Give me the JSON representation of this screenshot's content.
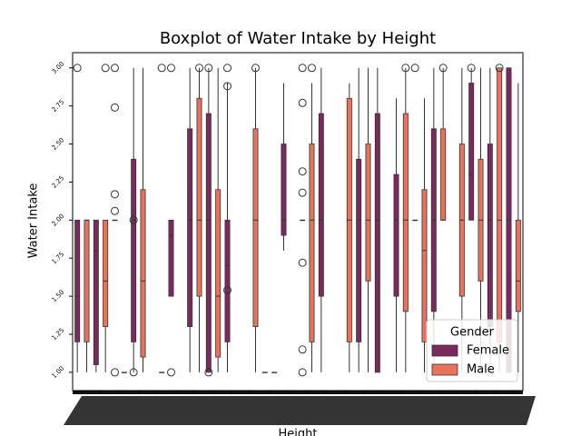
{
  "chart_data": {
    "type": "boxplot",
    "title": "Boxplot of Water Intake by Height",
    "x_label": "Height",
    "y_label": "Water Intake",
    "legend_title": "Gender",
    "legend": "lower right",
    "categories": [
      null,
      null,
      null,
      null,
      null,
      null,
      null,
      null,
      null,
      null,
      null,
      null,
      null,
      null,
      null,
      null,
      null,
      null,
      null,
      null,
      null,
      null,
      null,
      null
    ],
    "ylim": [
      0.88,
      3.1
    ],
    "yticks": [
      {
        "value": 1,
        "label": "1.00"
      },
      {
        "value": 1.25,
        "label": "1.25"
      },
      {
        "value": 1.5,
        "label": "1.50"
      },
      {
        "value": 1.75,
        "label": "1.75"
      },
      {
        "value": 2,
        "label": "2.00"
      },
      {
        "value": 2.25,
        "label": "2.25"
      },
      {
        "value": 2.5,
        "label": "2.50"
      },
      {
        "value": 2.75,
        "label": "2.75"
      },
      {
        "value": 3,
        "label": "3.00"
      }
    ],
    "series": [
      {
        "name": "Female",
        "color": "#7b2a5e",
        "boxes": [
          {
            "whislo": 1,
            "q1": 1.2,
            "median": 1.5,
            "q3": 2,
            "whishi": 2,
            "fliers": [
              3
            ]
          },
          {
            "whislo": 1,
            "q1": 1.05,
            "median": 1.8,
            "q3": 2,
            "whishi": 2,
            "fliers": []
          },
          {
            "whislo": 2,
            "q1": 2,
            "median": 2,
            "q3": 2,
            "whishi": 2,
            "fliers": [
              1,
              2.06,
              2.17,
              2.74,
              3
            ]
          },
          {
            "whislo": 1,
            "q1": 1.2,
            "median": 2,
            "q3": 2.4,
            "whishi": 3,
            "fliers": [
              1,
              2
            ]
          },
          null,
          {
            "whislo": 1.5,
            "q1": 1.5,
            "median": 1.9,
            "q3": 2,
            "whishi": 2,
            "fliers": [
              1,
              3
            ]
          },
          {
            "whislo": 1,
            "q1": 1.3,
            "median": 2,
            "q3": 2.6,
            "whishi": 3,
            "fliers": []
          },
          {
            "whislo": 1,
            "q1": 1,
            "median": 2,
            "q3": 2.7,
            "whishi": 3,
            "fliers": [
              1,
              3
            ]
          },
          {
            "whislo": 1,
            "q1": 1.2,
            "median": 1.7,
            "q3": 2,
            "whishi": 2.9,
            "fliers": [
              1.54,
              2.88,
              3
            ]
          },
          null,
          {
            "whislo": 1,
            "q1": 1,
            "median": 1,
            "q3": 1,
            "whishi": 1,
            "fliers": []
          },
          {
            "whislo": 1.8,
            "q1": 1.9,
            "median": 2,
            "q3": 2.5,
            "whishi": 2.9,
            "fliers": []
          },
          {
            "whislo": 2,
            "q1": 2,
            "median": 2,
            "q3": 2,
            "whishi": 2,
            "fliers": [
              1,
              1.15,
              1.72,
              2.18,
              2.32,
              2.77,
              3
            ]
          },
          {
            "whislo": 1,
            "q1": 1.5,
            "median": 2,
            "q3": 2.7,
            "whishi": 3,
            "fliers": []
          },
          null,
          {
            "whislo": 1,
            "q1": 1.2,
            "median": 2,
            "q3": 2.4,
            "whishi": 3,
            "fliers": []
          },
          {
            "whislo": 1,
            "q1": 1,
            "median": 2,
            "q3": 2.7,
            "whishi": 3,
            "fliers": []
          },
          {
            "whislo": 1,
            "q1": 1.5,
            "median": 2,
            "q3": 2.3,
            "whishi": 2.8,
            "fliers": []
          },
          {
            "whislo": 2,
            "q1": 2,
            "median": 2,
            "q3": 2,
            "whishi": 2,
            "fliers": [
              3
            ]
          },
          {
            "whislo": 1,
            "q1": 1.4,
            "median": 2,
            "q3": 2.6,
            "whishi": 3,
            "fliers": []
          },
          null,
          {
            "whislo": 2,
            "q1": 2,
            "median": 2.3,
            "q3": 2.9,
            "whishi": 3,
            "fliers": [
              3
            ]
          },
          {
            "whislo": 1,
            "q1": 1.3,
            "median": 2,
            "q3": 2.5,
            "whishi": 3,
            "fliers": [
              1
            ]
          },
          {
            "whislo": 1,
            "q1": 1,
            "median": 2,
            "q3": 3,
            "whishi": 3,
            "fliers": []
          }
        ]
      },
      {
        "name": "Male",
        "color": "#e8735a",
        "boxes": [
          {
            "whislo": 1,
            "q1": 1.2,
            "median": 2,
            "q3": 2,
            "whishi": 2,
            "fliers": []
          },
          {
            "whislo": 1,
            "q1": 1.3,
            "median": 1.6,
            "q3": 2,
            "whishi": 2,
            "fliers": [
              3
            ]
          },
          {
            "whislo": 1,
            "q1": 1,
            "median": 1,
            "q3": 1,
            "whishi": 1,
            "fliers": []
          },
          {
            "whislo": 1,
            "q1": 1.1,
            "median": 1.6,
            "q3": 2.2,
            "whishi": 3,
            "fliers": []
          },
          {
            "whislo": 1,
            "q1": 1,
            "median": 1,
            "q3": 1,
            "whishi": 1,
            "fliers": [
              3
            ]
          },
          null,
          {
            "whislo": 1,
            "q1": 1.5,
            "median": 2,
            "q3": 2.8,
            "whishi": 3,
            "fliers": [
              3
            ]
          },
          {
            "whislo": 1,
            "q1": 1.1,
            "median": 1.5,
            "q3": 2.2,
            "whishi": 3,
            "fliers": []
          },
          null,
          {
            "whislo": 1,
            "q1": 1.3,
            "median": 2,
            "q3": 2.6,
            "whishi": 3,
            "fliers": [
              3
            ]
          },
          {
            "whislo": 1,
            "q1": 1,
            "median": 1,
            "q3": 1,
            "whishi": 1,
            "fliers": []
          },
          null,
          {
            "whislo": 1,
            "q1": 1.2,
            "median": 2,
            "q3": 2.5,
            "whishi": 2.9,
            "fliers": [
              3
            ]
          },
          null,
          {
            "whislo": 1,
            "q1": 1.2,
            "median": 2,
            "q3": 2.8,
            "whishi": 2.9,
            "fliers": []
          },
          {
            "whislo": 1,
            "q1": 1.6,
            "median": 2,
            "q3": 2.5,
            "whishi": 3,
            "fliers": []
          },
          null,
          {
            "whislo": 1,
            "q1": 1.4,
            "median": 2,
            "q3": 2.7,
            "whishi": 3,
            "fliers": [
              3
            ]
          },
          {
            "whislo": 1,
            "q1": 1.2,
            "median": 1.8,
            "q3": 2.2,
            "whishi": 2.8,
            "fliers": []
          },
          {
            "whislo": 2,
            "q1": 2,
            "median": 2,
            "q3": 2.6,
            "whishi": 3,
            "fliers": [
              3
            ]
          },
          {
            "whislo": 1,
            "q1": 1.5,
            "median": 2,
            "q3": 2.5,
            "whishi": 3,
            "fliers": []
          },
          {
            "whislo": 1,
            "q1": 1.6,
            "median": 2,
            "q3": 2.4,
            "whishi": 3,
            "fliers": []
          },
          {
            "whislo": 1,
            "q1": 1.2,
            "median": 2,
            "q3": 3,
            "whishi": 3,
            "fliers": [
              3
            ]
          },
          {
            "whislo": 1,
            "q1": 1.4,
            "median": 1.6,
            "q3": 2,
            "whishi": 2.9,
            "fliers": []
          }
        ]
      }
    ]
  }
}
